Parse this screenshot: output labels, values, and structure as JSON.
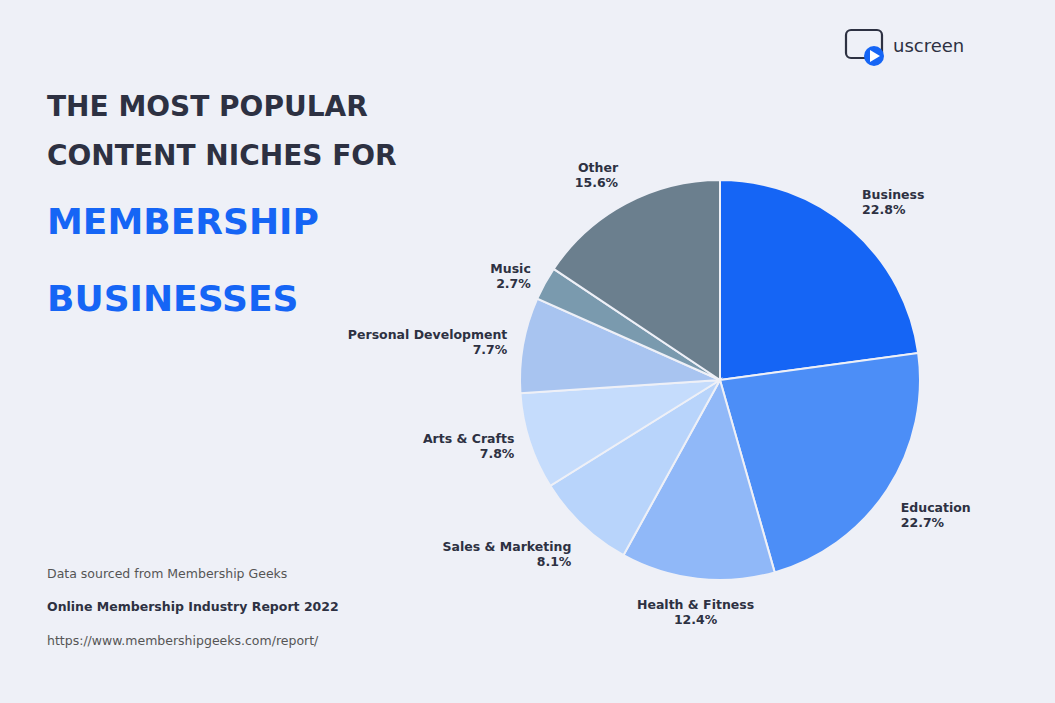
{
  "chart_data": {
    "type": "pie",
    "title": [
      "THE MOST POPULAR",
      "CONTENT NICHES FOR",
      "MEMBERSHIP",
      "BUSINESSES"
    ],
    "categories": [
      "Business",
      "Education",
      "Health & Fitness",
      "Sales & Marketing",
      "Arts & Crafts",
      "Personal Development",
      "Music",
      "Other"
    ],
    "values": [
      22.8,
      22.7,
      12.4,
      8.1,
      7.8,
      7.7,
      2.7,
      15.6
    ],
    "value_labels": [
      "22.8%",
      "22.7%",
      "12.4%",
      "8.1%",
      "7.8%",
      "7.7%",
      "2.7%",
      "15.6%"
    ],
    "colors": [
      "#1565F5",
      "#4C8EF7",
      "#90B8F8",
      "#B8D4FB",
      "#C5DCFC",
      "#A8C4F0",
      "#7A9AAE",
      "#6B7F8E"
    ],
    "data_labels": true,
    "annotations": [
      "Data sourced from Membership Geeks",
      "Online Membership Industry Report 2022",
      "https://www.membershipgeeks.com/report/",
      "uscreen"
    ]
  }
}
